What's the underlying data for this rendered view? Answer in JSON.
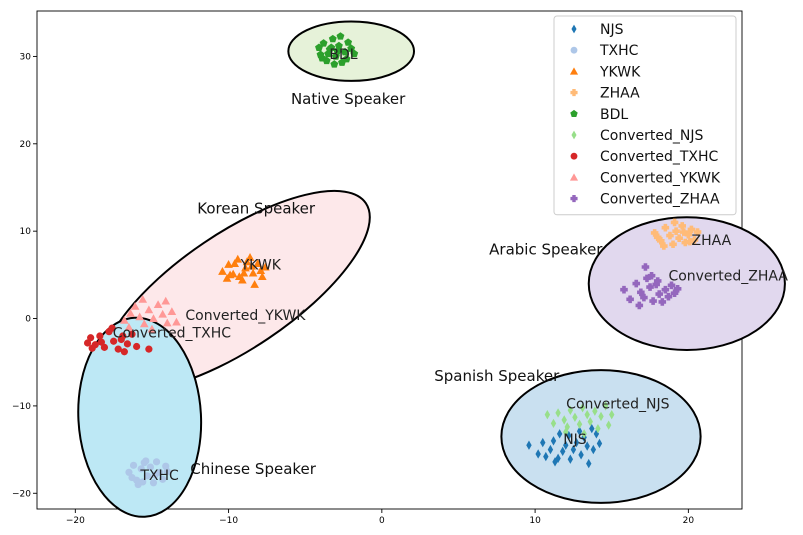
{
  "chart_data": {
    "type": "scatter",
    "title": "",
    "xlabel": "",
    "ylabel": "",
    "xlim": [
      -22.5,
      23.5
    ],
    "ylim": [
      -21.8,
      35.2
    ],
    "xticks": [
      -20,
      -10,
      0,
      10,
      20
    ],
    "yticks": [
      -20,
      -10,
      0,
      10,
      20,
      30
    ],
    "grid": false,
    "legend": {
      "placement": "top-right",
      "entries": [
        {
          "label": "NJS",
          "marker": "diamond",
          "color": "#1f77b4"
        },
        {
          "label": "TXHC",
          "marker": "circle",
          "color": "#aec7e8"
        },
        {
          "label": "YKWK",
          "marker": "triangle",
          "color": "#ff7f0e"
        },
        {
          "label": "ZHAA",
          "marker": "plus",
          "color": "#ffbb78"
        },
        {
          "label": "BDL",
          "marker": "pentagon",
          "color": "#2ca02c"
        },
        {
          "label": "Converted_NJS",
          "marker": "diamond",
          "color": "#98df8a"
        },
        {
          "label": "Converted_TXHC",
          "marker": "circle",
          "color": "#d62728"
        },
        {
          "label": "Converted_YKWK",
          "marker": "triangle",
          "color": "#ff9896"
        },
        {
          "label": "Converted_ZHAA",
          "marker": "plus",
          "color": "#9467bd"
        }
      ]
    },
    "series": [
      {
        "name": "NJS",
        "marker": "diamond",
        "color": "#1f77b4",
        "points": [
          [
            9.6,
            -14.5
          ],
          [
            10.2,
            -15.5
          ],
          [
            10.5,
            -14.2
          ],
          [
            11.0,
            -15.0
          ],
          [
            11.2,
            -14.0
          ],
          [
            11.5,
            -16.0
          ],
          [
            11.8,
            -15.2
          ],
          [
            12.0,
            -14.5
          ],
          [
            12.2,
            -13.4
          ],
          [
            12.3,
            -16.1
          ],
          [
            12.5,
            -15.0
          ],
          [
            12.7,
            -14.2
          ],
          [
            13.0,
            -15.6
          ],
          [
            13.2,
            -13.6
          ],
          [
            13.4,
            -14.6
          ],
          [
            13.5,
            -16.6
          ],
          [
            13.7,
            -12.6
          ],
          [
            13.8,
            -15.0
          ],
          [
            14.0,
            -13.2
          ],
          [
            14.2,
            -14.3
          ],
          [
            11.6,
            -13.2
          ],
          [
            10.7,
            -15.8
          ],
          [
            12.9,
            -12.9
          ],
          [
            11.3,
            -16.4
          ]
        ]
      },
      {
        "name": "TXHC",
        "marker": "circle",
        "color": "#aec7e8",
        "points": [
          [
            -16.5,
            -17.6
          ],
          [
            -16.2,
            -16.8
          ],
          [
            -16.0,
            -18.5
          ],
          [
            -15.7,
            -17.2
          ],
          [
            -15.5,
            -16.5
          ],
          [
            -15.3,
            -18.0
          ],
          [
            -15.1,
            -17.0
          ],
          [
            -14.9,
            -18.8
          ],
          [
            -14.7,
            -16.4
          ],
          [
            -14.5,
            -17.6
          ],
          [
            -14.3,
            -18.4
          ],
          [
            -14.1,
            -16.9
          ],
          [
            -15.9,
            -19.0
          ],
          [
            -14.8,
            -17.9
          ],
          [
            -15.4,
            -16.3
          ],
          [
            -16.3,
            -18.2
          ],
          [
            -14.0,
            -17.5
          ],
          [
            -15.6,
            -18.7
          ]
        ]
      },
      {
        "name": "YKWK",
        "marker": "triangle",
        "color": "#ff7f0e",
        "points": [
          [
            -10.4,
            5.4
          ],
          [
            -10.0,
            6.2
          ],
          [
            -9.7,
            5.1
          ],
          [
            -9.4,
            6.8
          ],
          [
            -9.1,
            4.4
          ],
          [
            -8.9,
            5.8
          ],
          [
            -8.6,
            7.0
          ],
          [
            -8.4,
            5.2
          ],
          [
            -8.1,
            6.3
          ],
          [
            -7.8,
            4.8
          ],
          [
            -7.6,
            5.9
          ],
          [
            -9.3,
            4.8
          ],
          [
            -8.8,
            6.5
          ],
          [
            -10.1,
            4.6
          ],
          [
            -9.0,
            5.2
          ],
          [
            -8.3,
            3.9
          ],
          [
            -9.6,
            6.3
          ],
          [
            -8.5,
            6.0
          ],
          [
            -7.9,
            5.5
          ],
          [
            -9.9,
            5.0
          ]
        ]
      },
      {
        "name": "ZHAA",
        "marker": "plus",
        "color": "#ffbb78",
        "points": [
          [
            17.8,
            9.8
          ],
          [
            18.2,
            8.9
          ],
          [
            18.5,
            10.4
          ],
          [
            18.8,
            9.5
          ],
          [
            19.0,
            8.5
          ],
          [
            19.2,
            10.0
          ],
          [
            19.4,
            9.2
          ],
          [
            19.6,
            10.6
          ],
          [
            19.8,
            8.7
          ],
          [
            20.0,
            9.6
          ],
          [
            20.2,
            10.2
          ],
          [
            20.4,
            9.0
          ],
          [
            20.6,
            9.9
          ],
          [
            18.4,
            8.3
          ],
          [
            19.1,
            11.0
          ],
          [
            19.7,
            9.9
          ],
          [
            18.0,
            9.3
          ],
          [
            20.1,
            8.8
          ]
        ]
      },
      {
        "name": "BDL",
        "marker": "pentagon",
        "color": "#2ca02c",
        "points": [
          [
            -4.0,
            30.2
          ],
          [
            -3.8,
            31.5
          ],
          [
            -3.6,
            29.5
          ],
          [
            -3.4,
            30.8
          ],
          [
            -3.2,
            32.0
          ],
          [
            -3.0,
            30.0
          ],
          [
            -2.8,
            31.2
          ],
          [
            -2.6,
            29.3
          ],
          [
            -2.4,
            30.5
          ],
          [
            -2.2,
            31.6
          ],
          [
            -3.9,
            29.8
          ],
          [
            -3.1,
            29.1
          ],
          [
            -2.0,
            30.9
          ],
          [
            -2.7,
            32.3
          ],
          [
            -3.5,
            30.3
          ],
          [
            -2.3,
            29.7
          ],
          [
            -3.3,
            31.0
          ],
          [
            -2.9,
            30.6
          ],
          [
            -4.1,
            31.0
          ],
          [
            -1.8,
            30.3
          ]
        ]
      },
      {
        "name": "Converted_NJS",
        "marker": "diamond",
        "color": "#98df8a",
        "points": [
          [
            10.8,
            -11.0
          ],
          [
            11.2,
            -12.0
          ],
          [
            11.5,
            -10.8
          ],
          [
            11.9,
            -11.6
          ],
          [
            12.1,
            -12.4
          ],
          [
            12.3,
            -10.5
          ],
          [
            12.6,
            -11.3
          ],
          [
            12.9,
            -12.1
          ],
          [
            13.1,
            -10.2
          ],
          [
            13.4,
            -11.0
          ],
          [
            13.6,
            -11.8
          ],
          [
            13.9,
            -10.6
          ],
          [
            14.1,
            -12.6
          ],
          [
            14.3,
            -11.2
          ],
          [
            14.6,
            -10.0
          ],
          [
            14.8,
            -12.2
          ],
          [
            15.0,
            -11.0
          ],
          [
            12.0,
            -13.0
          ],
          [
            13.2,
            -13.2
          ]
        ]
      },
      {
        "name": "Converted_TXHC",
        "marker": "circle",
        "color": "#d62728",
        "points": [
          [
            -19.0,
            -2.2
          ],
          [
            -18.7,
            -3.0
          ],
          [
            -18.4,
            -2.0
          ],
          [
            -18.1,
            -3.3
          ],
          [
            -17.8,
            -1.5
          ],
          [
            -17.5,
            -2.6
          ],
          [
            -17.2,
            -3.5
          ],
          [
            -16.9,
            -2.0
          ],
          [
            -16.6,
            -2.9
          ],
          [
            -16.3,
            -1.8
          ],
          [
            -16.0,
            -3.2
          ],
          [
            -18.9,
            -3.4
          ],
          [
            -17.6,
            -1.1
          ],
          [
            -16.8,
            -3.8
          ],
          [
            -18.3,
            -2.7
          ],
          [
            -17.0,
            -2.4
          ],
          [
            -15.2,
            -3.5
          ],
          [
            -19.2,
            -2.8
          ]
        ]
      },
      {
        "name": "Converted_YKWK",
        "marker": "triangle",
        "color": "#ff9896",
        "points": [
          [
            -16.8,
            -0.2
          ],
          [
            -16.4,
            0.6
          ],
          [
            -16.1,
            1.4
          ],
          [
            -15.8,
            0.2
          ],
          [
            -15.5,
            -0.6
          ],
          [
            -15.2,
            1.0
          ],
          [
            -14.9,
            0.0
          ],
          [
            -14.6,
            1.6
          ],
          [
            -14.3,
            0.5
          ],
          [
            -14.0,
            -0.5
          ],
          [
            -13.7,
            0.8
          ],
          [
            -15.6,
            2.2
          ],
          [
            -14.1,
            2.0
          ],
          [
            -16.5,
            -1.0
          ],
          [
            -15.0,
            -1.2
          ],
          [
            -13.4,
            -0.4
          ]
        ]
      },
      {
        "name": "Converted_ZHAA",
        "marker": "plus",
        "color": "#9467bd",
        "points": [
          [
            15.8,
            3.3
          ],
          [
            16.2,
            2.2
          ],
          [
            16.6,
            4.0
          ],
          [
            16.9,
            3.0
          ],
          [
            17.1,
            2.4
          ],
          [
            17.3,
            4.6
          ],
          [
            17.5,
            3.6
          ],
          [
            17.7,
            2.0
          ],
          [
            17.9,
            3.9
          ],
          [
            18.1,
            2.8
          ],
          [
            18.3,
            1.9
          ],
          [
            18.5,
            3.3
          ],
          [
            18.7,
            2.5
          ],
          [
            18.9,
            3.8
          ],
          [
            19.1,
            2.9
          ],
          [
            17.2,
            5.9
          ],
          [
            17.6,
            4.9
          ],
          [
            18.0,
            4.3
          ],
          [
            16.8,
            1.5
          ],
          [
            19.3,
            3.4
          ]
        ]
      }
    ],
    "clusters": [
      {
        "name": "Native Speaker",
        "center": [
          -2.0,
          30.6
        ],
        "rx": 4.1,
        "ry": 3.4,
        "angle": 0,
        "fill": "#e6f2d9",
        "label_pos": [
          -2.2,
          25.1
        ]
      },
      {
        "name": "Korean Speaker",
        "center": [
          -9.5,
          3.2
        ],
        "rx": 10.2,
        "ry": 6.6,
        "angle": 34,
        "fill": "#fde8ea",
        "label_pos": [
          -8.2,
          12.6
        ]
      },
      {
        "name": "Chinese Speaker",
        "center": [
          -15.8,
          -11.3
        ],
        "rx": 4.0,
        "ry": 11.4,
        "angle": 3,
        "fill": "#bde8f5",
        "label_pos": [
          -8.4,
          -17.2
        ]
      },
      {
        "name": "Arabic Speaker",
        "center": [
          19.9,
          4.0
        ],
        "rx": 6.4,
        "ry": 7.6,
        "angle": 0,
        "fill": "#e1d8ee",
        "label_pos": [
          10.7,
          7.9
        ]
      },
      {
        "name": "Spanish Speaker",
        "center": [
          14.3,
          -13.5
        ],
        "rx": 6.5,
        "ry": 7.6,
        "angle": 0,
        "fill": "#c9e0f0",
        "label_pos": [
          7.5,
          -6.6
        ]
      }
    ],
    "annotations": [
      {
        "text": "BDL",
        "x": -2.5,
        "y": 30.3
      },
      {
        "text": "YKWK",
        "x": -7.9,
        "y": 6.2
      },
      {
        "text": "ZHAA",
        "x": 21.5,
        "y": 9.0
      },
      {
        "text": "Converted_ZHAA",
        "x": 22.6,
        "y": 4.9
      },
      {
        "text": "Converted_YKWK",
        "x": -8.9,
        "y": 0.4
      },
      {
        "text": "Converted_TXHC",
        "x": -13.7,
        "y": -1.6
      },
      {
        "text": "TXHC",
        "x": -14.5,
        "y": -17.9
      },
      {
        "text": "Converted_NJS",
        "x": 15.4,
        "y": -9.7
      },
      {
        "text": "NJS",
        "x": 12.6,
        "y": -13.8
      }
    ]
  }
}
